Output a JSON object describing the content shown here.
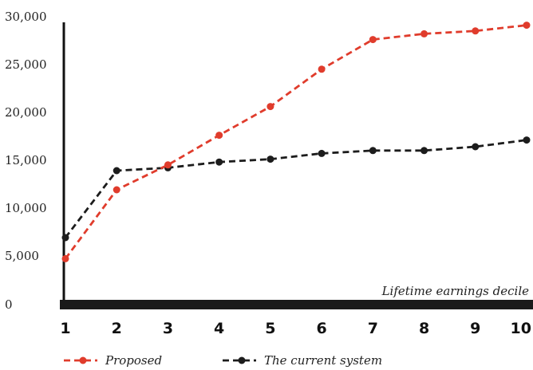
{
  "chart_data": {
    "type": "line",
    "title": "",
    "xlabel": "Lifetime earnings decile",
    "ylabel": "",
    "x": [
      1,
      2,
      3,
      4,
      5,
      6,
      7,
      8,
      9,
      10
    ],
    "x_tick_labels": [
      "1",
      "2",
      "3",
      "4",
      "5",
      "6",
      "7",
      "8",
      "9",
      "10"
    ],
    "y_tick_labels": [
      "0",
      "5,000",
      "10,000",
      "15,000",
      "20,000",
      "25,000",
      "30,000"
    ],
    "ylim": [
      0,
      30000
    ],
    "grid": false,
    "legend_position": "bottom",
    "series": [
      {
        "name": "Proposed",
        "color": "#e03c2c",
        "style": "dashed-with-markers",
        "values": [
          4800,
          12000,
          14600,
          17700,
          20700,
          24600,
          27700,
          28300,
          28600,
          29200
        ]
      },
      {
        "name": "The current system",
        "color": "#1c1c1c",
        "style": "dashed-with-markers",
        "values": [
          7000,
          14000,
          14300,
          14900,
          15200,
          15800,
          16100,
          16100,
          16500,
          17200
        ]
      }
    ]
  }
}
